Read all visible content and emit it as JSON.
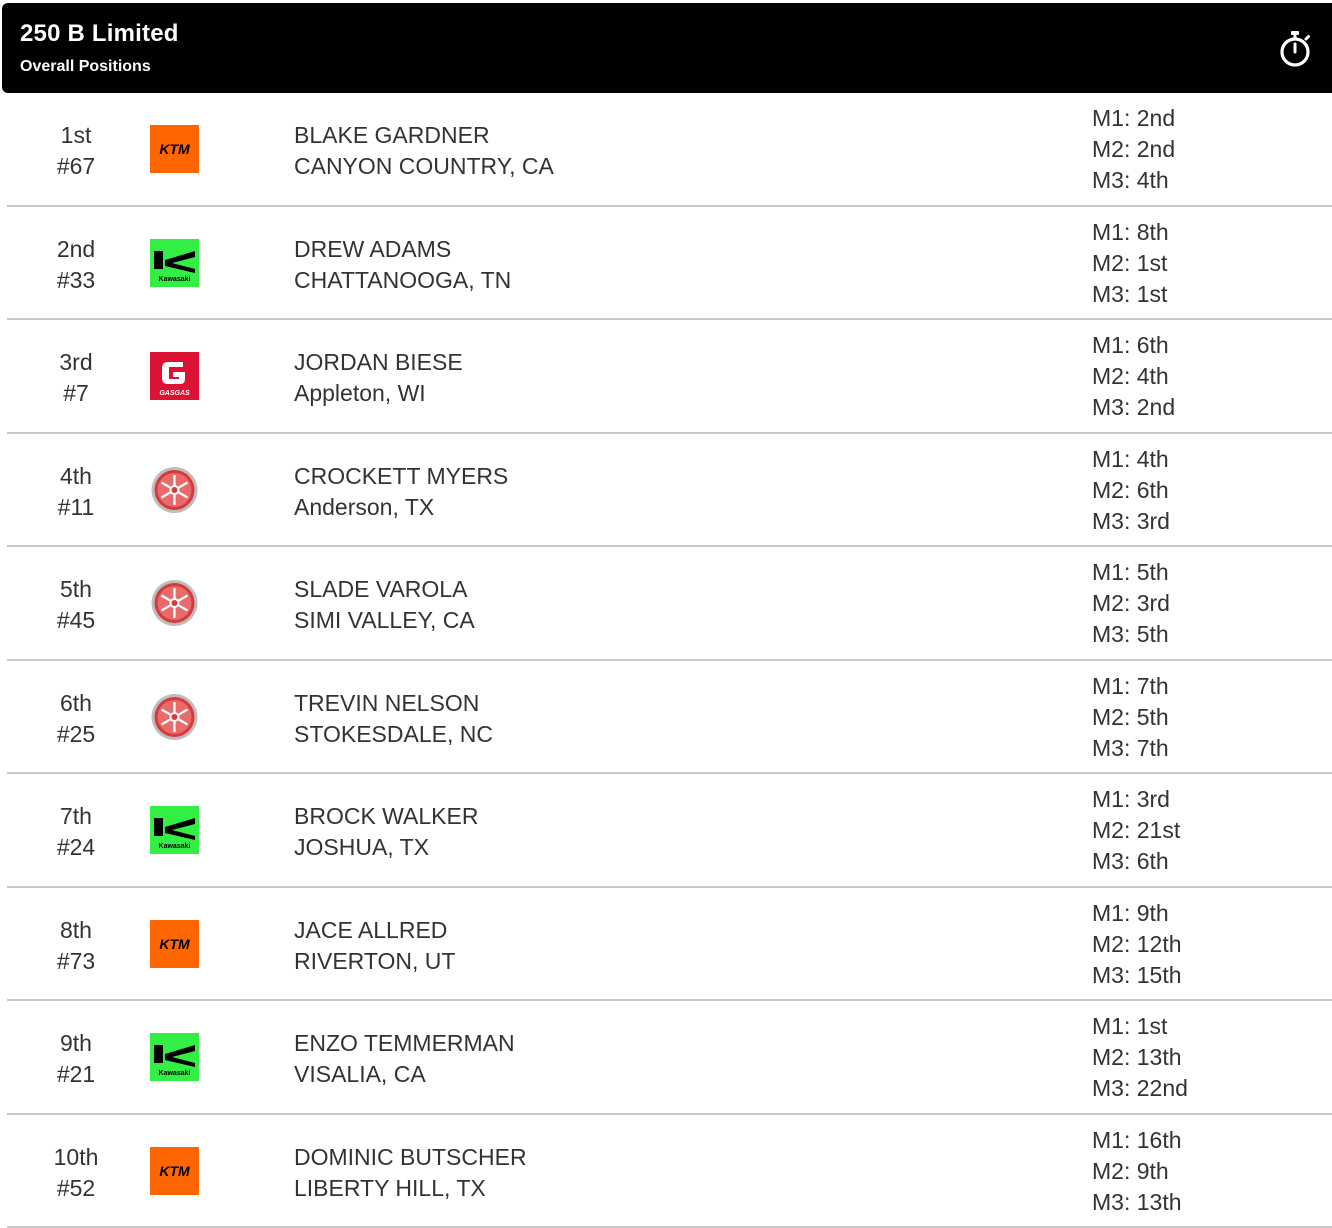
{
  "header": {
    "title": "250 B Limited",
    "subtitle": "Overall Positions",
    "timer_icon": "stopwatch-icon"
  },
  "brand_colors": {
    "ktm": "#ff6600",
    "kawasaki": "#33ee44",
    "gasgas": "#dd1133",
    "yamaha": "#d63a3a"
  },
  "riders": [
    {
      "position": "1st",
      "number": "#67",
      "brand": "ktm",
      "name": "BLAKE GARDNER",
      "hometown": "CANYON COUNTRY, CA",
      "m1": "M1: 2nd",
      "m2": "M2: 2nd",
      "m3": "M3: 4th"
    },
    {
      "position": "2nd",
      "number": "#33",
      "brand": "kawasaki",
      "name": "DREW ADAMS",
      "hometown": "CHATTANOOGA, TN",
      "m1": "M1: 8th",
      "m2": "M2: 1st",
      "m3": "M3: 1st"
    },
    {
      "position": "3rd",
      "number": "#7",
      "brand": "gasgas",
      "name": "JORDAN BIESE",
      "hometown": "Appleton, WI",
      "m1": "M1: 6th",
      "m2": "M2: 4th",
      "m3": "M3: 2nd"
    },
    {
      "position": "4th",
      "number": "#11",
      "brand": "yamaha",
      "name": "CROCKETT MYERS",
      "hometown": "Anderson, TX",
      "m1": "M1: 4th",
      "m2": "M2: 6th",
      "m3": "M3: 3rd"
    },
    {
      "position": "5th",
      "number": "#45",
      "brand": "yamaha",
      "name": "SLADE VAROLA",
      "hometown": "SIMI VALLEY, CA",
      "m1": "M1: 5th",
      "m2": "M2: 3rd",
      "m3": "M3: 5th"
    },
    {
      "position": "6th",
      "number": "#25",
      "brand": "yamaha",
      "name": "TREVIN NELSON",
      "hometown": "STOKESDALE, NC",
      "m1": "M1: 7th",
      "m2": "M2: 5th",
      "m3": "M3: 7th"
    },
    {
      "position": "7th",
      "number": "#24",
      "brand": "kawasaki",
      "name": "BROCK WALKER",
      "hometown": "JOSHUA, TX",
      "m1": "M1: 3rd",
      "m2": "M2: 21st",
      "m3": "M3: 6th"
    },
    {
      "position": "8th",
      "number": "#73",
      "brand": "ktm",
      "name": "JACE ALLRED",
      "hometown": "RIVERTON, UT",
      "m1": "M1: 9th",
      "m2": "M2: 12th",
      "m3": "M3: 15th"
    },
    {
      "position": "9th",
      "number": "#21",
      "brand": "kawasaki",
      "name": "ENZO TEMMERMAN",
      "hometown": "VISALIA, CA",
      "m1": "M1: 1st",
      "m2": "M2: 13th",
      "m3": "M3: 22nd"
    },
    {
      "position": "10th",
      "number": "#52",
      "brand": "ktm",
      "name": "DOMINIC BUTSCHER",
      "hometown": "LIBERTY HILL, TX",
      "m1": "M1: 16th",
      "m2": "M2: 9th",
      "m3": "M3: 13th"
    }
  ]
}
